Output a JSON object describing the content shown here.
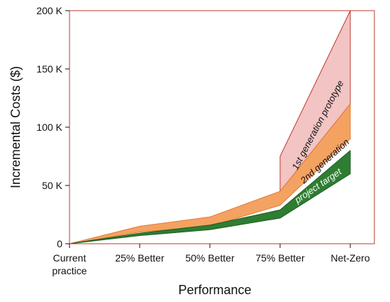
{
  "chart_data": {
    "type": "area",
    "title": "",
    "xlabel": "Performance",
    "ylabel": "Incremental Costs ($)",
    "categories": [
      "Current practice",
      "25% Better",
      "50% Better",
      "75% Better",
      "Net-Zero"
    ],
    "ylim": [
      0,
      200000
    ],
    "y_ticks": [
      {
        "value": 0,
        "label": "0"
      },
      {
        "value": 50000,
        "label": "50 K"
      },
      {
        "value": 100000,
        "label": "100 K"
      },
      {
        "value": 150000,
        "label": "150 K"
      },
      {
        "value": 200000,
        "label": "200 K"
      }
    ],
    "grid": false,
    "legend": "none",
    "bands": [
      {
        "name": "1st generation prototype",
        "color": "#f2c4c4",
        "edge_color": "#c0392b",
        "x": [
          3,
          3,
          4
        ],
        "lower": [
          45000,
          45000,
          120000
        ],
        "upper": [
          45000,
          75000,
          200000
        ]
      },
      {
        "name": "2nd generation",
        "color": "#f4a261",
        "edge_color": "#e07b39",
        "x": [
          0,
          1,
          2,
          3,
          4
        ],
        "lower": [
          0,
          10000,
          15000,
          33000,
          90000
        ],
        "upper": [
          0,
          15000,
          23000,
          45000,
          120000
        ]
      },
      {
        "name": "project target",
        "color": "#2e7d32",
        "edge_color": "#1b5e20",
        "x": [
          0,
          1,
          2,
          3,
          4
        ],
        "lower": [
          0,
          7000,
          12000,
          22000,
          60000
        ],
        "upper": [
          0,
          9000,
          16000,
          29000,
          80000
        ]
      }
    ]
  }
}
